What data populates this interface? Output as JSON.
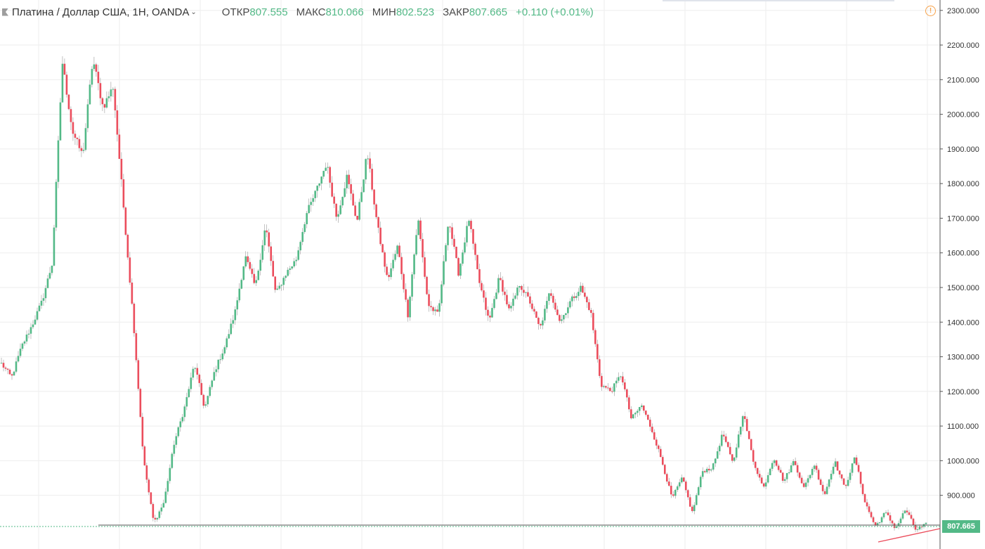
{
  "header": {
    "symbol": "Платина / Доллар США, 1H, OANDA",
    "open_label": "ОТКР",
    "open": "807.555",
    "high_label": "МАКС",
    "high": "810.066",
    "low_label": "МИН",
    "low": "802.523",
    "close_label": "ЗАКР",
    "close": "807.665",
    "change": "+0.110 (+0.01%)"
  },
  "colors": {
    "up": "#53b987",
    "down": "#eb4d5c",
    "grid": "#eeeeee",
    "axis": "#555555",
    "warning": "#f7a24a"
  },
  "icons": {
    "symbol_flag": "flag-icon",
    "dropdown": "chevron-down-icon",
    "alert": "warning-icon"
  },
  "chart_data": {
    "type": "candlestick",
    "ylim": [
      745,
      2330
    ],
    "y_ticks": [
      "2300.000",
      "2200.000",
      "2100.000",
      "2000.000",
      "1900.000",
      "1800.000",
      "1700.000",
      "1600.000",
      "1500.000",
      "1400.000",
      "1300.000",
      "1200.000",
      "1100.000",
      "1000.000",
      "900.000"
    ],
    "last_price": "807.665",
    "grid": true,
    "close_path": [
      1280,
      1240,
      1330,
      1390,
      1460,
      1570,
      2150,
      1950,
      1880,
      2160,
      2020,
      2080,
      1740,
      1400,
      1000,
      820,
      880,
      1050,
      1150,
      1280,
      1150,
      1260,
      1330,
      1430,
      1590,
      1500,
      1680,
      1480,
      1540,
      1580,
      1710,
      1780,
      1860,
      1700,
      1820,
      1690,
      1890,
      1680,
      1520,
      1620,
      1420,
      1700,
      1450,
      1420,
      1700,
      1540,
      1700,
      1520,
      1400,
      1530,
      1430,
      1510,
      1460,
      1380,
      1490,
      1400,
      1460,
      1500,
      1430,
      1220,
      1200,
      1250,
      1120,
      1160,
      1090,
      1000,
      890,
      950,
      850,
      970,
      980,
      1080,
      990,
      1140,
      1000,
      920,
      1010,
      940,
      1000,
      920,
      990,
      900,
      1000,
      920,
      1010,
      880,
      810,
      850,
      805,
      860,
      800,
      815
    ]
  }
}
